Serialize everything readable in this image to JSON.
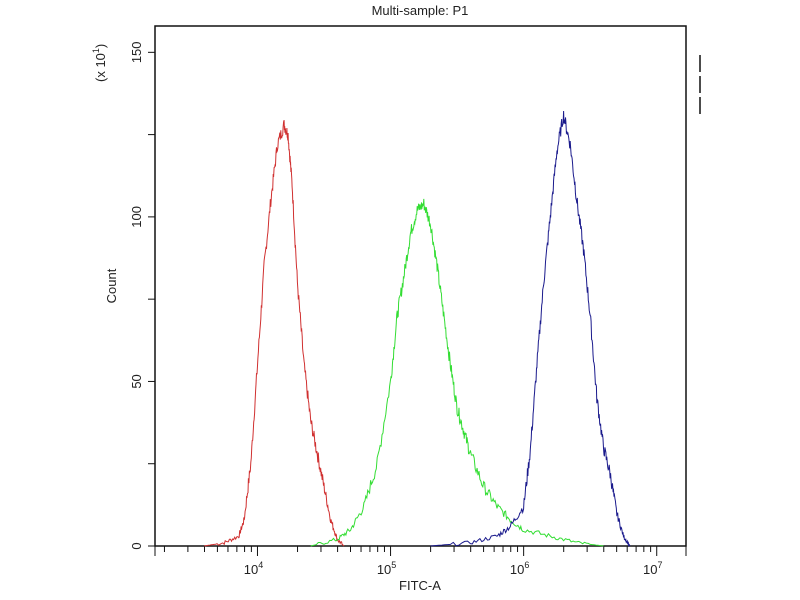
{
  "chart_data": {
    "type": "line",
    "title": "Multi-sample: P1",
    "xlabel": "FITC-A",
    "ylabel": "Count",
    "y_multiplier_label": "(x 10",
    "y_multiplier_exp": "1",
    "x_scale": "log",
    "xlim_log10": [
      3.23,
      7.22
    ],
    "ylim": [
      0,
      158
    ],
    "x_ticks": [
      {
        "base": "10",
        "exp": "4",
        "log": 4
      },
      {
        "base": "10",
        "exp": "5",
        "log": 5
      },
      {
        "base": "10",
        "exp": "6",
        "log": 6
      },
      {
        "base": "10",
        "exp": "7",
        "log": 7
      }
    ],
    "y_ticks": [
      {
        "label": "0",
        "value": 0
      },
      {
        "label": "50",
        "value": 50
      },
      {
        "label": "100",
        "value": 100
      },
      {
        "label": "150",
        "value": 150
      }
    ],
    "y_minor_ticks": [
      25,
      75,
      125
    ],
    "grid": false,
    "legend_placement": "top-right",
    "series": [
      {
        "name": "red",
        "color": "#d03030",
        "points_log10x_count": [
          [
            3.6,
            0
          ],
          [
            3.75,
            1
          ],
          [
            3.86,
            3
          ],
          [
            3.9,
            8
          ],
          [
            3.95,
            25
          ],
          [
            4.0,
            55
          ],
          [
            4.05,
            85
          ],
          [
            4.1,
            105
          ],
          [
            4.15,
            122
          ],
          [
            4.2,
            128
          ],
          [
            4.23,
            125
          ],
          [
            4.26,
            110
          ],
          [
            4.3,
            80
          ],
          [
            4.35,
            55
          ],
          [
            4.4,
            38
          ],
          [
            4.45,
            28
          ],
          [
            4.5,
            18
          ],
          [
            4.55,
            8
          ],
          [
            4.6,
            2
          ],
          [
            4.65,
            0
          ]
        ]
      },
      {
        "name": "green",
        "color": "#33dd33",
        "points_log10x_count": [
          [
            4.4,
            0
          ],
          [
            4.6,
            2
          ],
          [
            4.7,
            5
          ],
          [
            4.8,
            12
          ],
          [
            4.9,
            25
          ],
          [
            5.0,
            50
          ],
          [
            5.05,
            70
          ],
          [
            5.1,
            82
          ],
          [
            5.15,
            95
          ],
          [
            5.2,
            102
          ],
          [
            5.25,
            104
          ],
          [
            5.3,
            98
          ],
          [
            5.35,
            85
          ],
          [
            5.4,
            70
          ],
          [
            5.45,
            55
          ],
          [
            5.5,
            42
          ],
          [
            5.55,
            35
          ],
          [
            5.6,
            28
          ],
          [
            5.7,
            18
          ],
          [
            5.8,
            12
          ],
          [
            5.9,
            8
          ],
          [
            6.0,
            5
          ],
          [
            6.2,
            3
          ],
          [
            6.4,
            1
          ],
          [
            6.6,
            0
          ]
        ]
      },
      {
        "name": "blue",
        "color": "#1a1a8c",
        "points_log10x_count": [
          [
            5.3,
            0
          ],
          [
            5.6,
            1
          ],
          [
            5.8,
            3
          ],
          [
            5.9,
            6
          ],
          [
            6.0,
            12
          ],
          [
            6.05,
            29
          ],
          [
            6.1,
            55
          ],
          [
            6.15,
            80
          ],
          [
            6.2,
            100
          ],
          [
            6.25,
            120
          ],
          [
            6.3,
            131
          ],
          [
            6.35,
            122
          ],
          [
            6.4,
            105
          ],
          [
            6.45,
            90
          ],
          [
            6.5,
            70
          ],
          [
            6.55,
            45
          ],
          [
            6.6,
            30
          ],
          [
            6.65,
            22
          ],
          [
            6.7,
            10
          ],
          [
            6.75,
            3
          ],
          [
            6.8,
            0
          ]
        ]
      }
    ]
  }
}
